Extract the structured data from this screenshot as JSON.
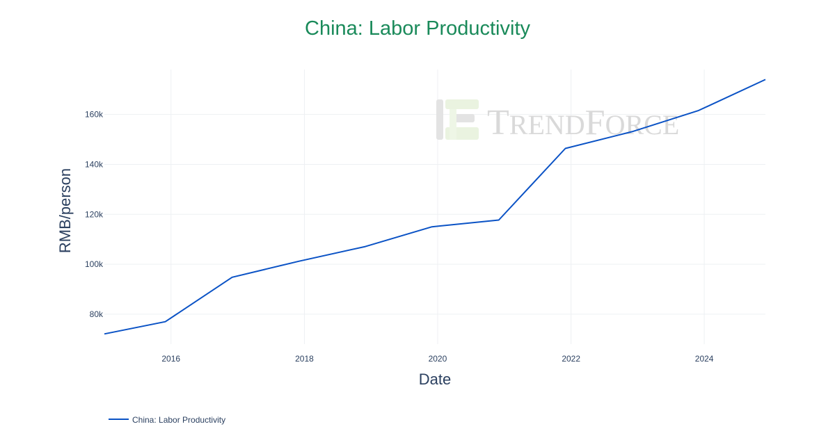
{
  "chart_data": {
    "type": "line",
    "title": "China: Labor Productivity",
    "xlabel": "Date",
    "ylabel": "RMB/person",
    "x": [
      "2015-01-01",
      "2015-12-01",
      "2016-12-01",
      "2017-12-01",
      "2018-12-01",
      "2019-12-01",
      "2020-12-01",
      "2021-12-01",
      "2022-12-01",
      "2023-12-01",
      "2024-12-01"
    ],
    "series": [
      {
        "name": "China: Labor Productivity",
        "color": "#0a52c5",
        "values": [
          72100,
          77000,
          94800,
          101200,
          107100,
          115000,
          117700,
          146400,
          153100,
          161600,
          174000
        ]
      }
    ],
    "xlim": [
      "2015-01-01",
      "2024-12-01"
    ],
    "ylim": [
      68000,
      178000
    ],
    "y_ticks": [
      80000,
      100000,
      120000,
      140000,
      160000
    ],
    "y_tick_labels": [
      "80k",
      "100k",
      "120k",
      "140k",
      "160k"
    ],
    "x_ticks": [
      "2016-01-01",
      "2018-01-01",
      "2020-01-01",
      "2022-01-01",
      "2024-01-01"
    ],
    "x_tick_labels": [
      "2016",
      "2018",
      "2020",
      "2022",
      "2024"
    ],
    "grid": true,
    "legend_position": "bottom-left"
  },
  "watermark": {
    "text_big1": "T",
    "text_small1": "REND",
    "text_big2": "F",
    "text_small2": "ORCE",
    "logo": "trendforce-logo-icon"
  },
  "colors": {
    "title": "#1a8a5a",
    "line": "#0a52c5",
    "axis_text": "#2a3f5f",
    "grid": "#eef0f3"
  }
}
